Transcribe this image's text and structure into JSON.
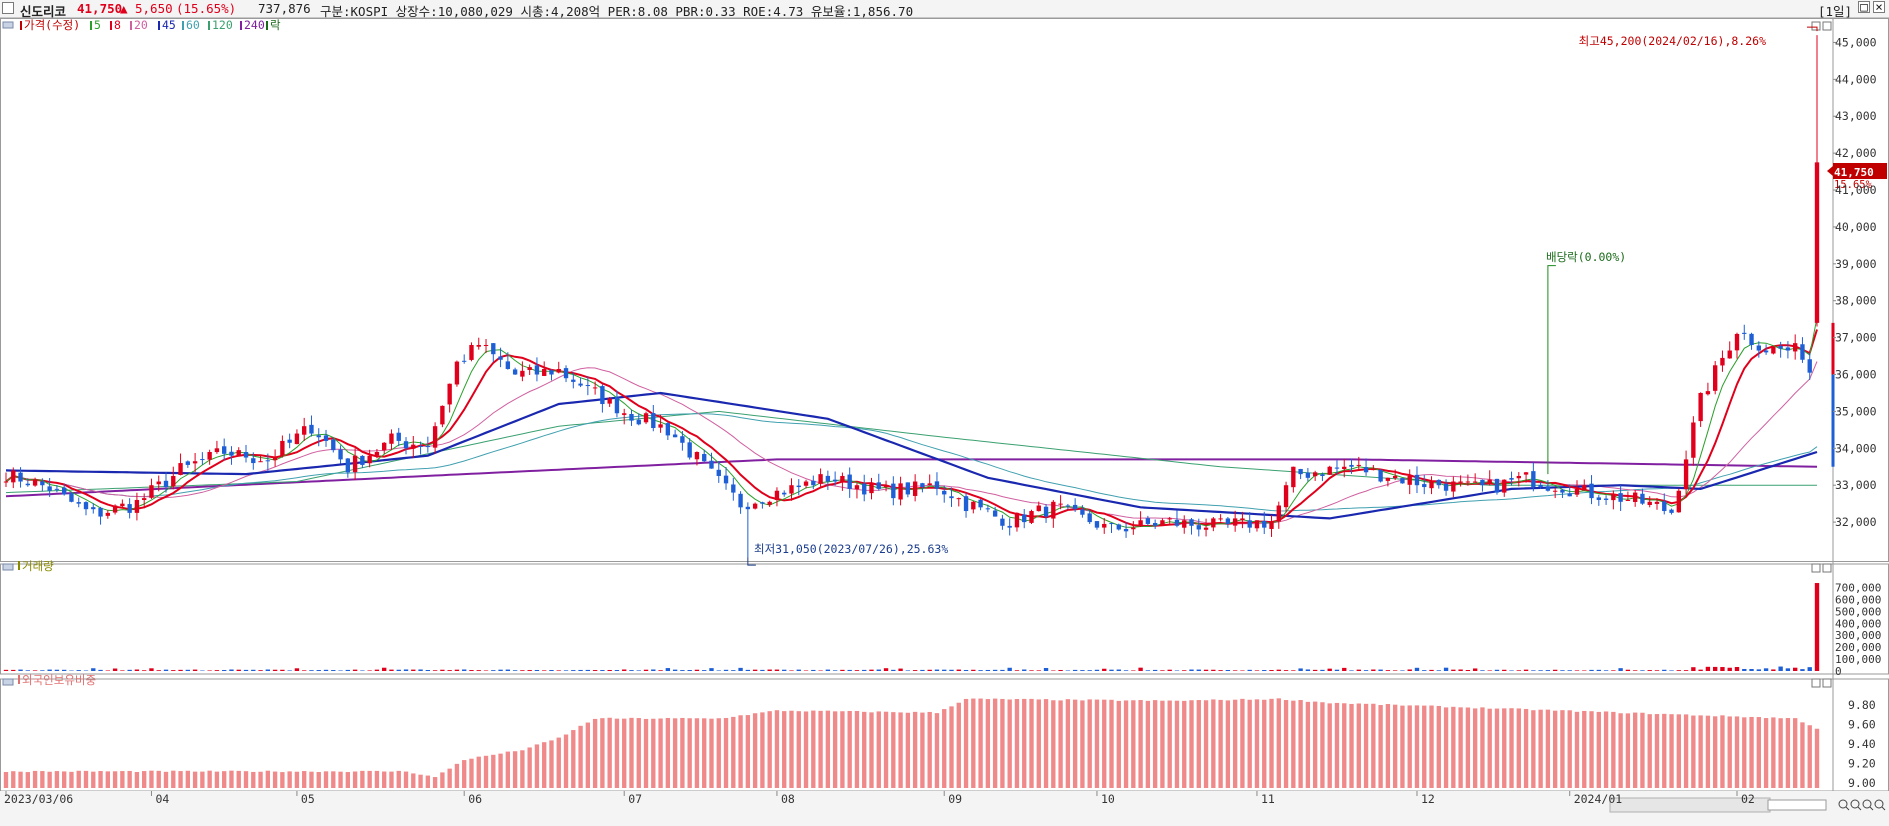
{
  "header": {
    "name": "신도리코",
    "price": "41,750",
    "arrow": "▲",
    "change": "5,650",
    "change_pct": "(15.65%)",
    "volume": "737,876",
    "info": "구분:KOSPI 상장수:10,080,029 시총:4,208억 PER:8.08 PBR:0.33 ROE:4.73 유보율:1,856.70",
    "period": "[1일]",
    "up_color": "#e0001b",
    "down_color": "#1e5fd6"
  },
  "chart_data": [
    {
      "type": "candlestick",
      "legend": [
        "가격(수정)",
        "5",
        "8",
        "20",
        "45",
        "60",
        "120",
        "240",
        "락"
      ],
      "y_ticks": [
        "45,000",
        "44,000",
        "43,000",
        "42,000",
        "41,000",
        "40,000",
        "39,000",
        "38,000",
        "37,000",
        "36,000",
        "35,000",
        "34,000",
        "33,000",
        "32,000"
      ],
      "ylim": [
        31000,
        45500
      ],
      "x_labels": [
        "2023/03/06",
        "04",
        "05",
        "06",
        "07",
        "08",
        "09",
        "10",
        "11",
        "12",
        "2024/01",
        "02"
      ],
      "x_label_months": [
        "2023-03-06",
        "2023-04-01",
        "2023-05-01",
        "2023-06-01",
        "2023-07-01",
        "2023-08-01",
        "2023-09-01",
        "2023-10-01",
        "2023-11-01",
        "2023-12-01",
        "2024-01-01",
        "2024-02-01"
      ],
      "close_anchors": [
        [
          "2023-03-06",
          33300
        ],
        [
          "2023-03-14",
          32900
        ],
        [
          "2023-03-22",
          32200
        ],
        [
          "2023-03-30",
          32500
        ],
        [
          "2023-04-07",
          33400
        ],
        [
          "2023-04-17",
          33900
        ],
        [
          "2023-04-25",
          33700
        ],
        [
          "2023-05-03",
          34600
        ],
        [
          "2023-05-10",
          33500
        ],
        [
          "2023-05-18",
          34200
        ],
        [
          "2023-05-25",
          34100
        ],
        [
          "2023-05-31",
          36300
        ],
        [
          "2023-06-05",
          36800
        ],
        [
          "2023-06-12",
          36000
        ],
        [
          "2023-06-20",
          36100
        ],
        [
          "2023-06-26",
          35600
        ],
        [
          "2023-07-03",
          35000
        ],
        [
          "2023-07-11",
          34500
        ],
        [
          "2023-07-18",
          33500
        ],
        [
          "2023-07-25",
          32500
        ],
        [
          "2023-08-01",
          32800
        ],
        [
          "2023-08-10",
          33200
        ],
        [
          "2023-08-22",
          32800
        ],
        [
          "2023-08-31",
          33000
        ],
        [
          "2023-09-06",
          32500
        ],
        [
          "2023-09-14",
          32000
        ],
        [
          "2023-09-22",
          32400
        ],
        [
          "2023-10-04",
          31800
        ],
        [
          "2023-10-16",
          32000
        ],
        [
          "2023-10-25",
          31900
        ],
        [
          "2023-11-03",
          32000
        ],
        [
          "2023-11-08",
          33300
        ],
        [
          "2023-11-20",
          33500
        ],
        [
          "2023-12-01",
          33100
        ],
        [
          "2023-12-14",
          32900
        ],
        [
          "2023-12-22",
          33200
        ],
        [
          "2024-01-03",
          32800
        ],
        [
          "2024-01-12",
          32600
        ],
        [
          "2024-01-19",
          32300
        ],
        [
          "2024-01-25",
          35300
        ],
        [
          "2024-02-01",
          37200
        ],
        [
          "2024-02-07",
          36700
        ],
        [
          "2024-02-14",
          36600
        ],
        [
          "2024-02-15",
          36100
        ],
        [
          "2024-02-16",
          41750
        ]
      ],
      "ma_anchors": {
        "45": [
          [
            "2023-03-06",
            33400
          ],
          [
            "2023-04-20",
            33300
          ],
          [
            "2023-05-25",
            33800
          ],
          [
            "2023-06-20",
            35200
          ],
          [
            "2023-07-10",
            35500
          ],
          [
            "2023-08-10",
            34800
          ],
          [
            "2023-09-10",
            33200
          ],
          [
            "2023-10-10",
            32400
          ],
          [
            "2023-11-15",
            32100
          ],
          [
            "2023-12-20",
            32900
          ],
          [
            "2024-01-10",
            33000
          ],
          [
            "2024-01-25",
            32900
          ],
          [
            "2024-02-16",
            33900
          ]
        ],
        "120": [
          [
            "2023-03-06",
            32800
          ],
          [
            "2023-05-01",
            33100
          ],
          [
            "2023-06-20",
            34600
          ],
          [
            "2023-07-20",
            35000
          ],
          [
            "2023-09-01",
            34300
          ],
          [
            "2023-10-25",
            33500
          ],
          [
            "2023-12-15",
            33000
          ],
          [
            "2024-02-16",
            33000
          ]
        ],
        "240": [
          [
            "2023-03-06",
            32700
          ],
          [
            "2023-06-01",
            33300
          ],
          [
            "2023-08-01",
            33700
          ],
          [
            "2023-11-20",
            33700
          ],
          [
            "2024-02-16",
            33500
          ]
        ]
      },
      "high_annotation": "최고45,200(2024/02/16),8.26%",
      "low_annotation": "최저31,050(2023/07/26),25.63%",
      "ex_dividend_annotation": "배당락(0.00%)",
      "ex_dividend_date": "2023-12-27",
      "low_date": "2023-07-26",
      "high": 45200,
      "low": 31050,
      "last_price": "41,750",
      "last_pct": "15.65%"
    },
    {
      "type": "bar",
      "legend": "거래량",
      "y_ticks": [
        "700,000",
        "600,000",
        "500,000",
        "400,000",
        "300,000",
        "200,000",
        "100,000",
        "0"
      ],
      "ylim": [
        0,
        780000
      ],
      "last_volume": 737876
    },
    {
      "type": "bar",
      "legend": "외국인보유비중",
      "y_ticks": [
        "9.80",
        "9.60",
        "9.40",
        "9.20",
        "9.00"
      ],
      "ylim": [
        8.95,
        9.92
      ],
      "anchors": [
        [
          "2023-03-06",
          9.12
        ],
        [
          "2023-05-20",
          9.12
        ],
        [
          "2023-05-26",
          9.06
        ],
        [
          "2023-06-01",
          9.24
        ],
        [
          "2023-06-13",
          9.34
        ],
        [
          "2023-06-20",
          9.46
        ],
        [
          "2023-06-27",
          9.66
        ],
        [
          "2023-07-20",
          9.66
        ],
        [
          "2023-08-01",
          9.74
        ],
        [
          "2023-08-31",
          9.72
        ],
        [
          "2023-09-06",
          9.86
        ],
        [
          "2023-10-15",
          9.84
        ],
        [
          "2023-11-06",
          9.86
        ],
        [
          "2023-11-15",
          9.82
        ],
        [
          "2024-01-10",
          9.72
        ],
        [
          "2024-02-13",
          9.66
        ],
        [
          "2024-02-16",
          9.56
        ]
      ]
    }
  ]
}
